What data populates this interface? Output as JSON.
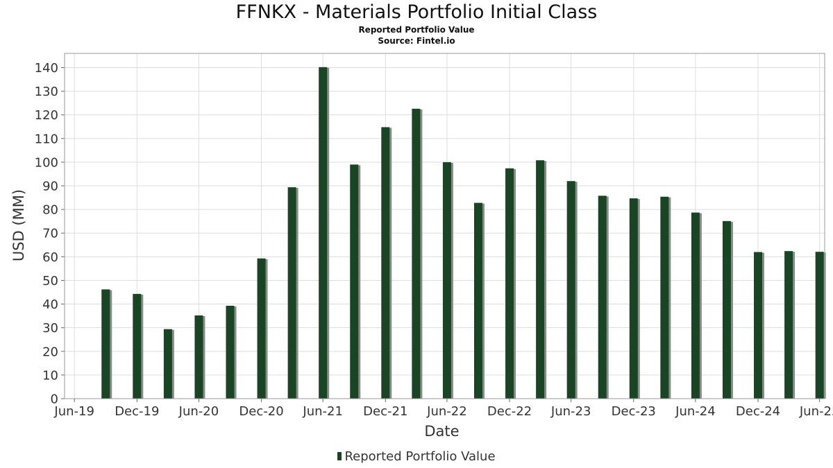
{
  "chart": {
    "title": "FFNKX - Materials Portfolio Initial Class",
    "subtitle": "Reported Portfolio Value",
    "source": "Source: Fintel.io"
  },
  "legend": {
    "label": "Reported Portfolio Value"
  },
  "colors": {
    "bar": "#1a4525",
    "bar_shadow": "#8a8a8a",
    "grid": "#dddddd",
    "frame": "#999999"
  },
  "chart_data": {
    "type": "bar",
    "title": "FFNKX - Materials Portfolio Initial Class",
    "subtitle": "Reported Portfolio Value",
    "xlabel": "Date",
    "ylabel": "USD (MM)",
    "ylim": [
      0,
      146
    ],
    "yticks": [
      0,
      10,
      20,
      30,
      40,
      50,
      60,
      70,
      80,
      90,
      100,
      110,
      120,
      130,
      140
    ],
    "xlim": [
      "2019-06-01",
      "2025-07-15"
    ],
    "xticks": [
      {
        "date": "2019-06-30",
        "label": "Jun-19"
      },
      {
        "date": "2019-12-31",
        "label": "Dec-19"
      },
      {
        "date": "2020-06-30",
        "label": "Jun-20"
      },
      {
        "date": "2020-12-31",
        "label": "Dec-20"
      },
      {
        "date": "2021-06-30",
        "label": "Jun-21"
      },
      {
        "date": "2021-12-31",
        "label": "Dec-21"
      },
      {
        "date": "2022-06-30",
        "label": "Jun-22"
      },
      {
        "date": "2022-12-31",
        "label": "Dec-22"
      },
      {
        "date": "2023-06-30",
        "label": "Jun-23"
      },
      {
        "date": "2023-12-31",
        "label": "Dec-23"
      },
      {
        "date": "2024-06-30",
        "label": "Jun-24"
      },
      {
        "date": "2024-12-31",
        "label": "Dec-24"
      },
      {
        "date": "2025-06-30",
        "label": "Jun-25"
      }
    ],
    "grid": true,
    "legend_position": "bottom",
    "series": [
      {
        "name": "Reported Portfolio Value",
        "x": [
          "2019-09-30",
          "2019-12-31",
          "2020-03-31",
          "2020-06-30",
          "2020-09-30",
          "2020-12-31",
          "2021-03-31",
          "2021-06-30",
          "2021-09-30",
          "2021-12-31",
          "2022-03-31",
          "2022-06-30",
          "2022-09-30",
          "2022-12-31",
          "2023-03-31",
          "2023-06-30",
          "2023-09-30",
          "2023-12-31",
          "2024-03-31",
          "2024-06-30",
          "2024-09-30",
          "2024-12-31",
          "2025-03-31",
          "2025-06-30"
        ],
        "values": [
          46.2,
          44.3,
          29.4,
          35.2,
          39.3,
          59.3,
          89.4,
          140.2,
          99.0,
          114.8,
          122.6,
          100.0,
          82.8,
          97.4,
          100.8,
          92.0,
          85.8,
          84.7,
          85.4,
          78.7,
          75.1,
          62.0,
          62.4,
          62.1
        ]
      }
    ]
  }
}
